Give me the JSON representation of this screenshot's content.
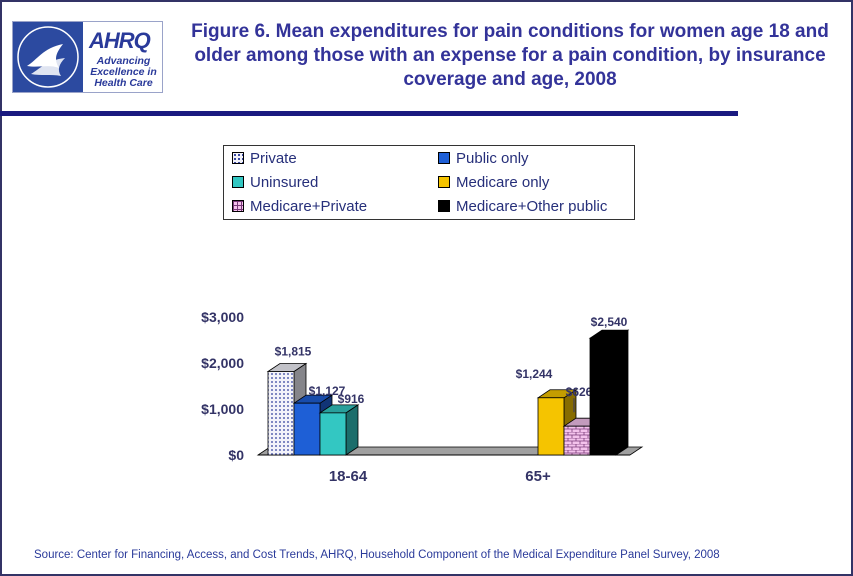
{
  "logo": {
    "name": "AHRQ",
    "tagline": "Advancing Excellence in Health Care",
    "seal_text": "DEPARTMENT OF HEALTH & HUMAN SERVICES USA"
  },
  "title": "Figure 6. Mean expenditures for pain conditions for women age 18 and older among those with an expense for a pain condition, by insurance coverage and age, 2008",
  "source": "Source: Center for Financing, Access, and Cost Trends, AHRQ, Household Component of the Medical Expenditure Panel Survey, 2008",
  "colors": {
    "title": "#333399",
    "rule": "#1a1a80",
    "Private": "#f2f2fa",
    "Public only": "#1e5fd6",
    "Uninsured": "#33c7c2",
    "Medicare only": "#f5c400",
    "Medicare+Private": "#f4c2ec",
    "Medicare+Other public": "#000000"
  },
  "chart_data": {
    "type": "bar",
    "title": "",
    "xlabel": "",
    "ylabel": "",
    "categories": [
      "18-64",
      "65+"
    ],
    "ylim": [
      0,
      3000
    ],
    "yticks": [
      "$0",
      "$1,000",
      "$2,000",
      "$3,000"
    ],
    "legend_placement": "top",
    "legend_order": [
      "Private",
      "Public only",
      "Uninsured",
      "Medicare only",
      "Medicare+Private",
      "Medicare+Other public"
    ],
    "series_groups": [
      {
        "category": "18-64",
        "bars": [
          {
            "name": "Private",
            "value": 1815,
            "label": "$1,815"
          },
          {
            "name": "Public only",
            "value": 1127,
            "label": "$1,127"
          },
          {
            "name": "Uninsured",
            "value": 916,
            "label": "$916"
          }
        ]
      },
      {
        "category": "65+",
        "bars": [
          {
            "name": "Medicare only",
            "value": 1244,
            "label": "$1,244"
          },
          {
            "name": "Medicare+Private",
            "value": 626,
            "label": "$626"
          },
          {
            "name": "Medicare+Other public",
            "value": 2540,
            "label": "$2,540"
          }
        ]
      }
    ]
  }
}
